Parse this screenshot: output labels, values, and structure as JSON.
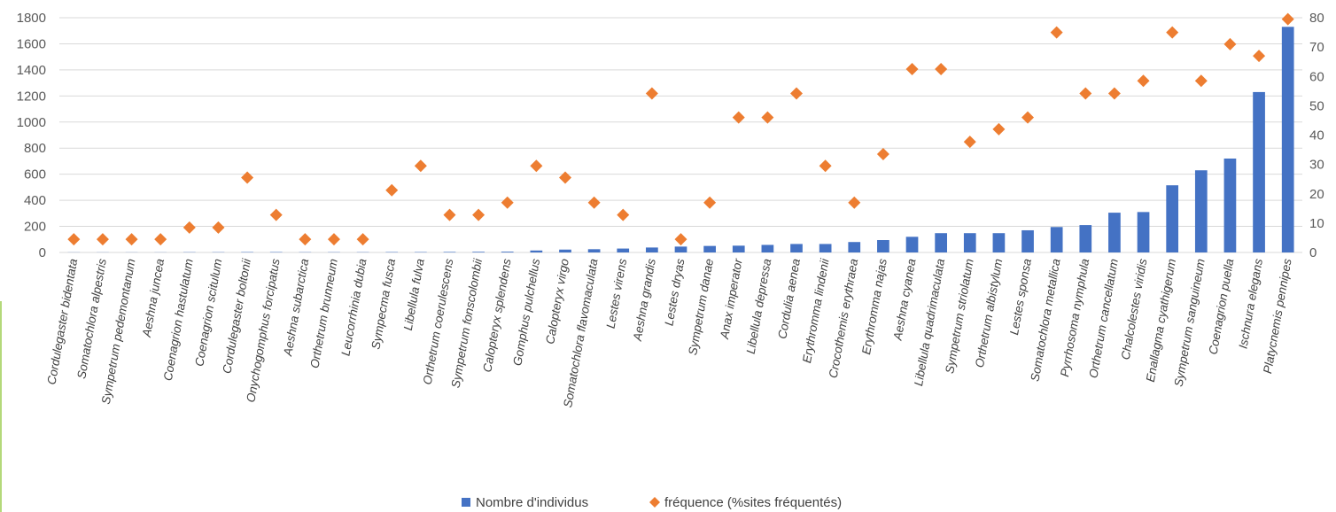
{
  "chart_data": {
    "type": "bar",
    "categories": [
      "Cordulegaster bidentata",
      "Somatochlora alpestris",
      "Sympetrum pedemontanum",
      "Aeshna juncea",
      "Coenagrion hastulatum",
      "Coenagrion scitulum",
      "Cordulegaster boltonii",
      "Onychogomphus forcipatus",
      "Aeshna subarctica",
      "Orthetrum brunneum",
      "Leucorrhinia dubia",
      "Sympecma fusca",
      "Libellula fulva",
      "Orthetrum coerulescens",
      "Sympetrum fonscolombii",
      "Calopteryx splendens",
      "Gomphus pulchellus",
      "Calopteryx virgo",
      "Somatochlora flavomaculata",
      "Lestes virens",
      "Aeshna grandis",
      "Lestes dryas",
      "Sympetrum danae",
      "Anax imperator",
      "Libellula depressa",
      "Cordulia aenea",
      "Erythromma lindenii",
      "Crocothemis erythraea",
      "Erythromma najas",
      "Aeshna cyanea",
      "Libellula quadrimaculata",
      "Sympetrum striolatum",
      "Orthetrum albistylum",
      "Lestes sponsa",
      "Somatochlora metallica",
      "Pyrrhosoma nymphula",
      "Orthetrum cancellatum",
      "Chalcolestes viridis",
      "Enallagma cyathigerum",
      "Sympetrum sanguineum",
      "Coenagrion puella",
      "Ischnura elegans",
      "Platycnemis pennipes"
    ],
    "series": [
      {
        "name": "Nombre d'individus",
        "type": "bar",
        "axis": "left",
        "color": "#4472c4",
        "values": [
          1,
          1,
          1,
          1,
          2,
          2,
          3,
          3,
          2,
          2,
          2,
          3,
          3,
          4,
          5,
          6,
          15,
          22,
          25,
          30,
          38,
          45,
          50,
          52,
          58,
          65,
          65,
          80,
          95,
          120,
          148,
          148,
          148,
          170,
          195,
          210,
          305,
          310,
          515,
          630,
          720,
          1230,
          1730
        ]
      },
      {
        "name": "fréquence (%sites fréquentés)",
        "type": "scatter",
        "marker": "diamond",
        "axis": "right",
        "color": "#ed7d31",
        "values": [
          4.5,
          4.5,
          4.5,
          4.5,
          8.5,
          8.5,
          25.5,
          12.8,
          4.5,
          4.5,
          4.5,
          21.2,
          29.5,
          12.8,
          12.8,
          17,
          29.5,
          25.5,
          17,
          12.8,
          54.2,
          4.5,
          17,
          46,
          46,
          54.2,
          29.5,
          17,
          33.5,
          62.5,
          62.5,
          37.7,
          42,
          46,
          75,
          54.2,
          54.2,
          58.5,
          75,
          58.5,
          71,
          67,
          79.5
        ]
      }
    ],
    "ylim": [
      0,
      1800
    ],
    "y_ticks": [
      "0",
      "200",
      "400",
      "600",
      "800",
      "1000",
      "1200",
      "1400",
      "1600",
      "1800"
    ],
    "y2lim": [
      0,
      80
    ],
    "y2_ticks": [
      "0",
      "10",
      "20",
      "30",
      "40",
      "50",
      "60",
      "70",
      "80"
    ],
    "grid": true,
    "legend_position": "bottom"
  }
}
